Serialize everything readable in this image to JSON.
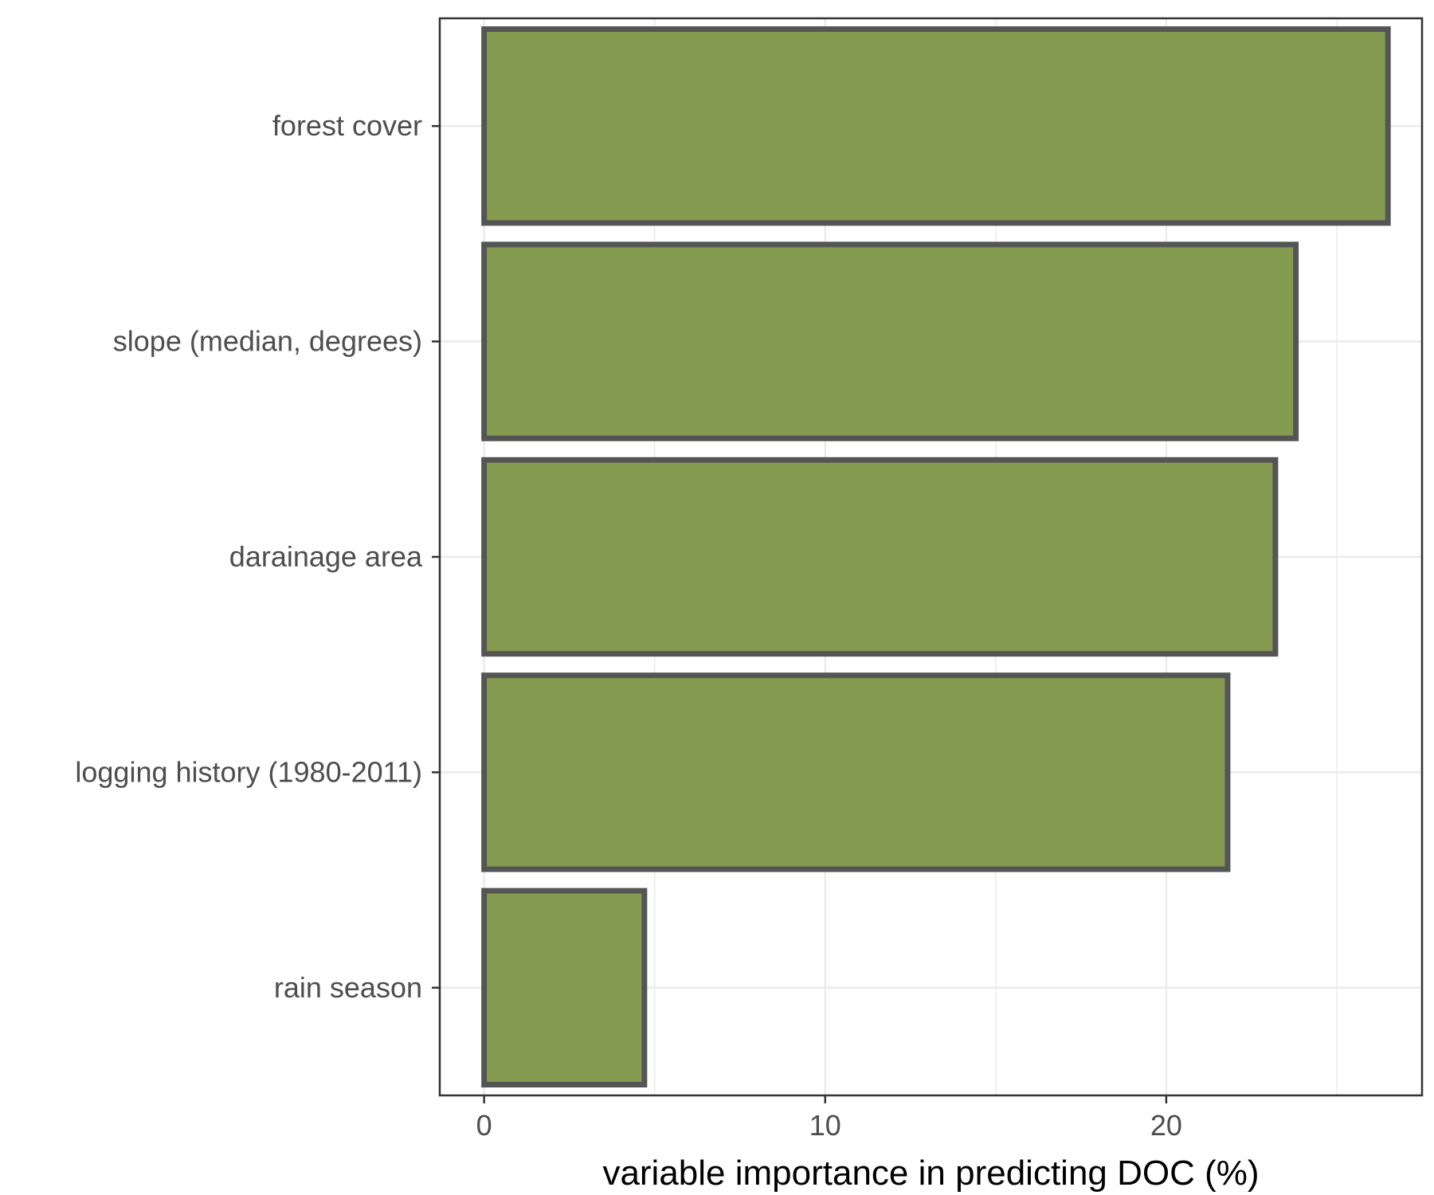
{
  "chart_data": {
    "type": "bar",
    "orientation": "horizontal",
    "title": "",
    "xlabel": "variable importance in predicting DOC (%)",
    "ylabel": "",
    "categories": [
      "forest cover",
      "slope (median, degrees)",
      "darainage area",
      "logging history (1980-2011)",
      "rain season"
    ],
    "values": [
      26.5,
      23.8,
      23.2,
      21.8,
      4.7
    ],
    "xlim": [
      -1.3,
      27.5
    ],
    "xticks": [
      0,
      10,
      20
    ],
    "xtick_labels": [
      "0",
      "10",
      "20"
    ],
    "grid": true,
    "legend": "none",
    "colors": {
      "bar_fill": "#849b50",
      "bar_stroke": "#555555",
      "grid": "#ebebeb",
      "panel_border": "#333333",
      "tick_label": "#4d4d4d"
    }
  }
}
